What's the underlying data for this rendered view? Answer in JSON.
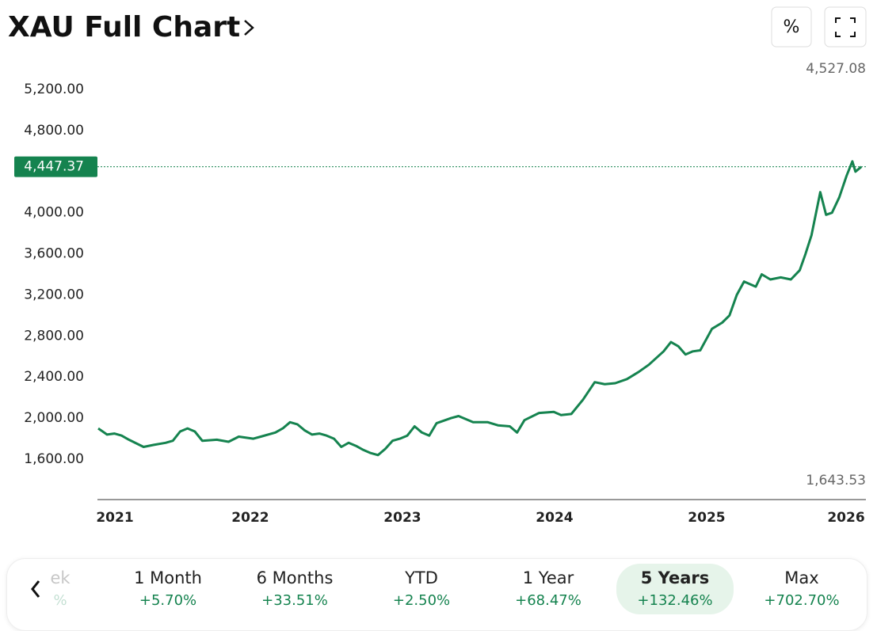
{
  "chart_data": {
    "type": "line",
    "title": "XAU Full Chart",
    "color": "#15834f",
    "x": [
      2021.0,
      2021.058,
      2021.106,
      2021.154,
      2021.202,
      2021.298,
      2021.366,
      2021.443,
      2021.491,
      2021.539,
      2021.587,
      2021.635,
      2021.684,
      2021.78,
      2021.857,
      2021.924,
      2022.02,
      2022.069,
      2022.165,
      2022.213,
      2022.261,
      2022.309,
      2022.358,
      2022.406,
      2022.454,
      2022.502,
      2022.55,
      2022.598,
      2022.646,
      2022.695,
      2022.743,
      2022.791,
      2022.839,
      2022.887,
      2022.935,
      2022.983,
      2023.032,
      2023.08,
      2023.128,
      2023.176,
      2023.224,
      2023.32,
      2023.369,
      2023.465,
      2023.561,
      2023.628,
      2023.706,
      2023.754,
      2023.802,
      2023.898,
      2023.995,
      2024.043,
      2024.11,
      2024.187,
      2024.264,
      2024.331,
      2024.399,
      2024.476,
      2024.553,
      2024.62,
      2024.717,
      2024.765,
      2024.813,
      2024.861,
      2024.909,
      2024.958,
      2025.035,
      2025.102,
      2025.15,
      2025.198,
      2025.246,
      2025.323,
      2025.362,
      2025.419,
      2025.487,
      2025.554,
      2025.612,
      2025.65,
      2025.689,
      2025.747,
      2025.785,
      2025.824,
      2025.872,
      2025.92,
      2025.958,
      2025.978,
      2026.017
    ],
    "values": [
      1900,
      1840,
      1850,
      1830,
      1790,
      1720,
      1740,
      1760,
      1780,
      1870,
      1900,
      1870,
      1780,
      1790,
      1770,
      1820,
      1800,
      1820,
      1860,
      1900,
      1960,
      1940,
      1880,
      1840,
      1850,
      1830,
      1800,
      1720,
      1760,
      1730,
      1690,
      1660,
      1640,
      1700,
      1780,
      1800,
      1830,
      1920,
      1860,
      1830,
      1950,
      2000,
      2020,
      1960,
      1960,
      1930,
      1920,
      1860,
      1980,
      2050,
      2060,
      2030,
      2040,
      2180,
      2350,
      2330,
      2340,
      2380,
      2450,
      2520,
      2650,
      2740,
      2700,
      2620,
      2650,
      2660,
      2870,
      2930,
      3000,
      3200,
      3330,
      3280,
      3400,
      3350,
      3370,
      3350,
      3440,
      3600,
      3780,
      4200,
      3980,
      4000,
      4150,
      4360,
      4500,
      4400,
      4447.37
    ],
    "xlim": [
      2020.995,
      2026.047
    ],
    "xticks": [
      2021,
      2022,
      2023,
      2024,
      2025,
      2026
    ],
    "ylim": [
      1207,
      5416
    ],
    "yticks": [
      {
        "value": 1600,
        "label": "1,600.00"
      },
      {
        "value": 2000,
        "label": "2,000.00"
      },
      {
        "value": 2400,
        "label": "2,400.00"
      },
      {
        "value": 2800,
        "label": "2,800.00"
      },
      {
        "value": 3200,
        "label": "3,200.00"
      },
      {
        "value": 3600,
        "label": "3,600.00"
      },
      {
        "value": 4000,
        "label": "4,000.00"
      },
      {
        "value": 4800,
        "label": "4,800.00"
      },
      {
        "value": 5200,
        "label": "5,200.00"
      }
    ],
    "current": {
      "value": 4447.37,
      "label": "4,447.37"
    },
    "high": {
      "value": 4527.08,
      "label": "4,527.08"
    },
    "low": {
      "value": 1643.53,
      "label": "1,643.53"
    }
  },
  "toolbar": {
    "percent_button": "%"
  },
  "ranges": [
    {
      "label": "ek",
      "change": "%",
      "selected": false
    },
    {
      "label": "1 Month",
      "change": "+5.70%",
      "selected": false
    },
    {
      "label": "6 Months",
      "change": "+33.51%",
      "selected": false
    },
    {
      "label": "YTD",
      "change": "+2.50%",
      "selected": false
    },
    {
      "label": "1 Year",
      "change": "+68.47%",
      "selected": false
    },
    {
      "label": "5 Years",
      "change": "+132.46%",
      "selected": true
    },
    {
      "label": "Max",
      "change": "+702.70%",
      "selected": false
    }
  ]
}
